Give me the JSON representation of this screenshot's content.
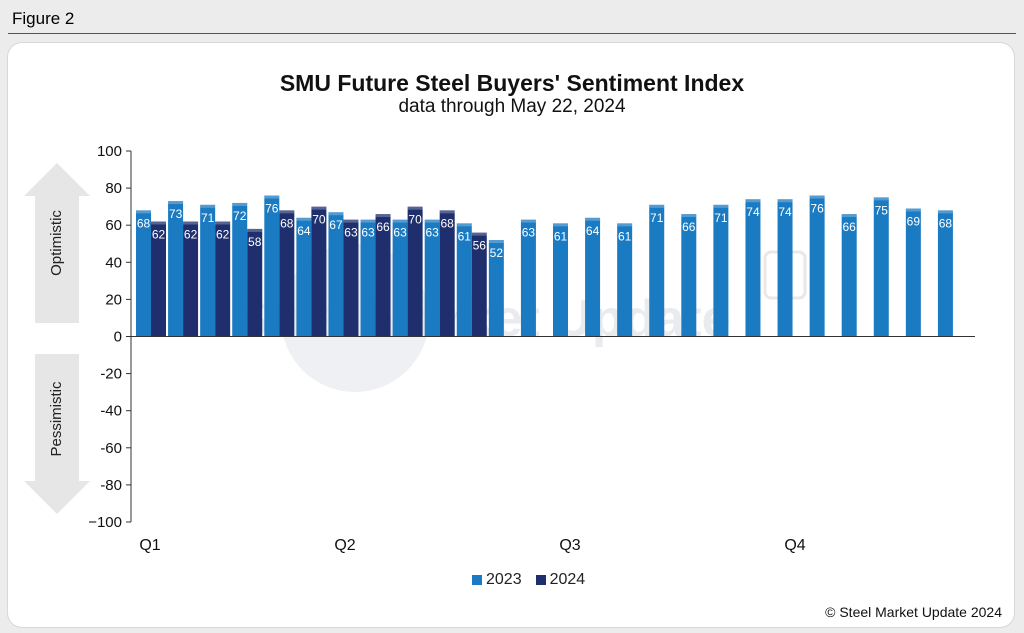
{
  "figure_label": "Figure 2",
  "copyright": "© Steel Market Update 2024",
  "watermark": "Steel Market Update",
  "colors": {
    "s2023": "#1a7ac2",
    "s2024": "#1f2f6e",
    "arrow": "#e6e6e6"
  },
  "chart_data": {
    "type": "bar",
    "title": "SMU Future Steel Buyers' Sentiment Index",
    "subtitle": "data through May 22, 2024",
    "ylim": [
      -100,
      100
    ],
    "yticks": [
      100,
      80,
      60,
      40,
      20,
      0,
      -20,
      -40,
      -60,
      -80,
      -100
    ],
    "ytick_labels": [
      "100",
      "80",
      "60",
      "40",
      "20",
      "0",
      "-20",
      "-40",
      "-60",
      "-80",
      "−100"
    ],
    "x_labels": [
      "Q1",
      "Q2",
      "Q3",
      "Q4"
    ],
    "side_labels": {
      "up": "Optimistic",
      "down": "Pessimistic"
    },
    "grid": false,
    "legend_position": "bottom-center",
    "series": [
      {
        "name": "2023",
        "values": [
          68,
          73,
          71,
          72,
          76,
          64,
          67,
          63,
          63,
          63,
          61,
          52,
          63,
          61,
          64,
          61,
          71,
          66,
          71,
          74,
          74,
          76,
          66,
          75,
          69,
          68
        ]
      },
      {
        "name": "2024",
        "values": [
          62,
          62,
          62,
          58,
          68,
          70,
          63,
          66,
          70,
          68,
          56
        ]
      }
    ]
  }
}
